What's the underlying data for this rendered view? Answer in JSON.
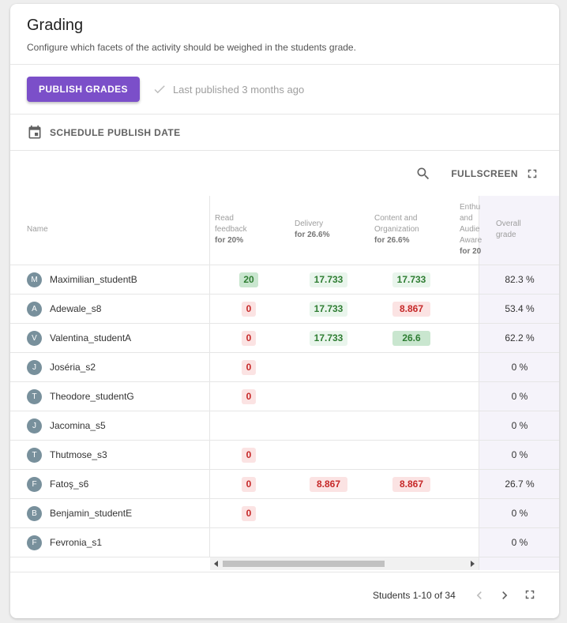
{
  "header": {
    "title": "Grading",
    "subtitle": "Configure which facets of the activity should be weighed in the students grade."
  },
  "publish": {
    "button_label": "PUBLISH GRADES",
    "status": "Last published 3 months ago",
    "icon": "check-icon"
  },
  "schedule": {
    "label": "SCHEDULE PUBLISH DATE",
    "icon": "calendar-icon"
  },
  "toolbar": {
    "fullscreen_label": "FULLSCREEN"
  },
  "columns": {
    "name": "Name",
    "c1_title_1": "Read",
    "c1_title_2": "feedback",
    "c1_weight": "for 20%",
    "c2_title": "Delivery",
    "c2_weight": "for 26.6%",
    "c3_title_1": "Content and",
    "c3_title_2": "Organization",
    "c3_weight": "for 26.6%",
    "c4_title_1": "Enthu",
    "c4_title_2": "and",
    "c4_title_3": "Audie",
    "c4_title_4": "Aware",
    "c4_weight": "for 20",
    "overall_1": "Overall",
    "overall_2": "grade"
  },
  "students": [
    {
      "initial": "M",
      "name": "Maximilian_studentB",
      "c1": "20",
      "c2": "17.733",
      "c3": "17.733",
      "overall": "82.3 %"
    },
    {
      "initial": "A",
      "name": "Adewale_s8",
      "c1": "0",
      "c2": "17.733",
      "c3": "8.867",
      "overall": "53.4 %"
    },
    {
      "initial": "V",
      "name": "Valentina_studentA",
      "c1": "0",
      "c2": "17.733",
      "c3": "26.6",
      "overall": "62.2 %"
    },
    {
      "initial": "J",
      "name": "Joséria_s2",
      "c1": "0",
      "c2": "",
      "c3": "",
      "overall": "0 %"
    },
    {
      "initial": "T",
      "name": "Theodore_studentG",
      "c1": "0",
      "c2": "",
      "c3": "",
      "overall": "0 %"
    },
    {
      "initial": "J",
      "name": "Jacomina_s5",
      "c1": "",
      "c2": "",
      "c3": "",
      "overall": "0 %"
    },
    {
      "initial": "T",
      "name": "Thutmose_s3",
      "c1": "0",
      "c2": "",
      "c3": "",
      "overall": "0 %"
    },
    {
      "initial": "F",
      "name": "Fatoş_s6",
      "c1": "0",
      "c2": "8.867",
      "c3": "8.867",
      "overall": "26.7 %"
    },
    {
      "initial": "B",
      "name": "Benjamin_studentE",
      "c1": "0",
      "c2": "",
      "c3": "",
      "overall": "0 %"
    },
    {
      "initial": "F",
      "name": "Fevronia_s1",
      "c1": "",
      "c2": "",
      "c3": "",
      "overall": "0 %"
    }
  ],
  "pager": {
    "text": "Students 1-10 of 34"
  },
  "colors": {
    "accent": "#7b4fc9",
    "fail": "#c62828",
    "pass": "#2e7d32"
  }
}
